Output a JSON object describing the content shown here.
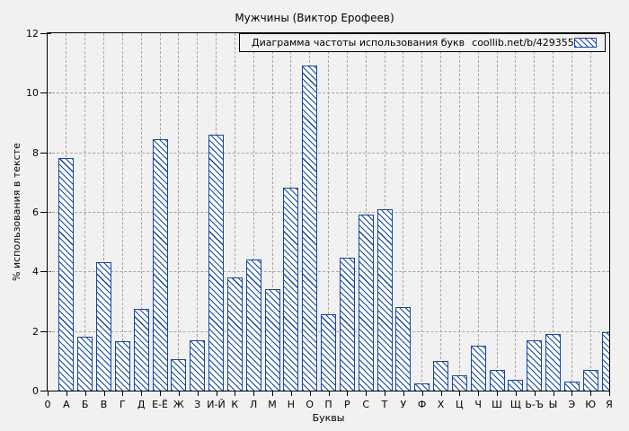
{
  "title": "Мужчины (Виктор Ерофеев)",
  "legend": {
    "label": "Диаграмма частоты использования букв",
    "source": "coollib.net/b/429355"
  },
  "chart_data": {
    "type": "bar",
    "title": "Мужчины (Виктор Ерофеев)",
    "xlabel": "Буквы",
    "ylabel": "% использования в тексте",
    "origin_label": "0",
    "ylim": [
      0,
      12
    ],
    "yticks": [
      0,
      2,
      4,
      6,
      8,
      10,
      12
    ],
    "grid": true,
    "legend_position": "top-right",
    "categories": [
      "А",
      "Б",
      "В",
      "Г",
      "Д",
      "Е-Ё",
      "Ж",
      "З",
      "И-Й",
      "К",
      "Л",
      "М",
      "Н",
      "О",
      "П",
      "Р",
      "С",
      "Т",
      "У",
      "Ф",
      "Х",
      "Ц",
      "Ч",
      "Ш",
      "Щ",
      "Ь-Ъ",
      "Ы",
      "Э",
      "Ю",
      "Я"
    ],
    "values": [
      7.8,
      1.8,
      4.3,
      1.65,
      2.75,
      8.45,
      1.05,
      1.7,
      8.6,
      3.8,
      4.4,
      3.4,
      6.8,
      10.9,
      2.55,
      4.45,
      5.9,
      6.1,
      2.8,
      0.25,
      1.0,
      0.5,
      1.5,
      0.7,
      0.35,
      1.7,
      1.9,
      0.3,
      0.7,
      1.95
    ]
  },
  "colors": {
    "bar": "#1347a0",
    "bar_fill": "#ffffff",
    "grid": "#a6a6a6",
    "axis": "#000000",
    "background": "#f1f1f1"
  }
}
